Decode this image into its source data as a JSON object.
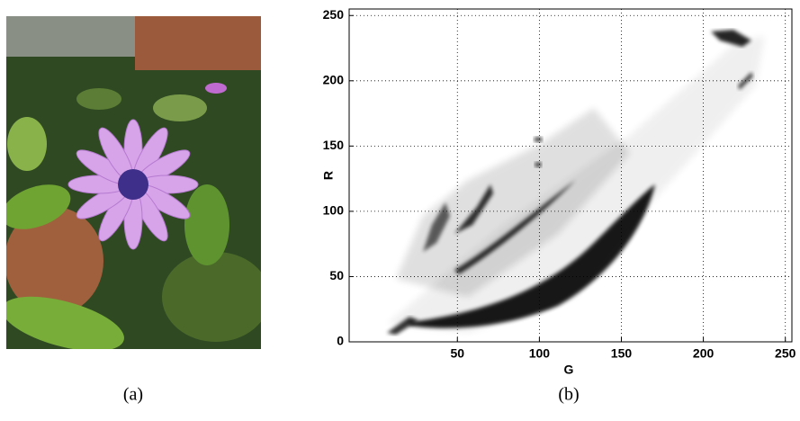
{
  "panels": [
    {
      "caption": "(a)"
    },
    {
      "caption": "(b)"
    }
  ],
  "chart_data": {
    "type": "density",
    "x_label": "G",
    "y_label": "R",
    "xlim": [
      -16,
      254
    ],
    "ylim": [
      0,
      255
    ],
    "xticks": [
      50,
      100,
      150,
      200,
      250
    ],
    "yticks": [
      0,
      50,
      100,
      150,
      200,
      250
    ],
    "grid": true,
    "color": "#000000"
  }
}
